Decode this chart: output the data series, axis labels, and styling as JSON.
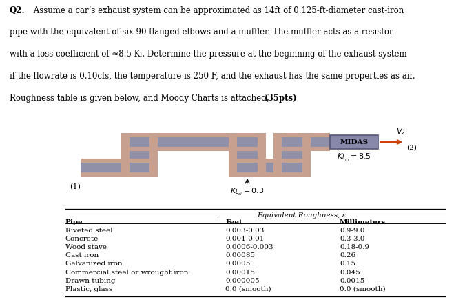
{
  "bg_color": "#ffffff",
  "text_color": "#000000",
  "pipe_gray": "#9090a8",
  "pipe_pink": "#c8a090",
  "midas_gray": "#8888aa",
  "title_line1": "Q2. Assume a car’s exhaust system can be approximated as 14ft of 0.125-ft-diameter cast-iron",
  "title_line2": "pipe with the equivalent of six 90 flanged elbows and a muffler. The muffler acts as a resistor",
  "title_line3": "with a loss coefficient of ≈8.5 Kₗ. Determine the pressure at the beginning of the exhaust system",
  "title_line4": "if the flowrate is 0.10cfs, the temperature is 250 F, and the exhaust has the same properties as air.",
  "title_line5": "Roughness table is given below, and Moody Charts is attached. (35pts)",
  "table_header_center": "Equivalent Roughness, ε",
  "table_col1_header": "Pipe",
  "table_col2_header": "Feet",
  "table_col3_header": "Millimeters",
  "table_rows": [
    [
      "Riveted steel",
      "0.003-0.03",
      "0.9-9.0"
    ],
    [
      "Concrete",
      "0.001-0.01",
      "0.3-3.0"
    ],
    [
      "Wood stave",
      "0.0006-0.003",
      "0.18-0.9"
    ],
    [
      "Cast iron",
      "0.00085",
      "0.26"
    ],
    [
      "Galvanized iron",
      "0.0005",
      "0.15"
    ],
    [
      "Commercial steel or wrought iron",
      "0.00015",
      "0.045"
    ],
    [
      "Drawn tubing",
      "0.000005",
      "0.0015"
    ],
    [
      "Plastic, glass",
      "0.0 (smooth)",
      "0.0 (smooth)"
    ]
  ]
}
